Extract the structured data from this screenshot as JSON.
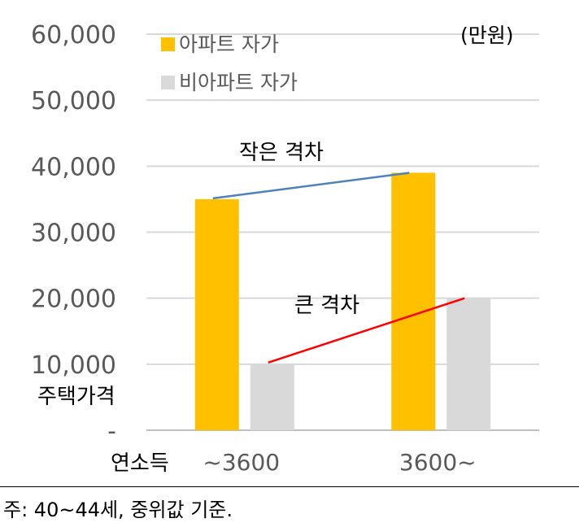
{
  "chart_data": {
    "type": "bar",
    "categories": [
      "~3600",
      "3600~"
    ],
    "series": [
      {
        "name": "아파트 자가",
        "values": [
          35000,
          39000
        ],
        "color": "#FFC000"
      },
      {
        "name": "비아파트 자가",
        "values": [
          10000,
          20000
        ],
        "color": "#D9D9D9"
      }
    ],
    "ylim": [
      0,
      60000
    ],
    "yticks": [
      "-",
      "10,000",
      "20,000",
      "30,000",
      "40,000",
      "50,000",
      "60,000"
    ],
    "ytick_values": [
      0,
      10000,
      20000,
      30000,
      40000,
      50000,
      60000
    ],
    "ylabel": "주택가격",
    "xlabel": "연소득",
    "unit": "(만원)",
    "grid": true,
    "legend": "top-left",
    "annotations": {
      "small_gap": {
        "text": "작은 격차",
        "color": "#4F81BD",
        "from": {
          "category": "~3600",
          "value": 35000
        },
        "to": {
          "category": "3600~",
          "value": 39000
        }
      },
      "big_gap": {
        "text": "큰 격차",
        "color": "#FF0000",
        "from": {
          "category": "~3600",
          "value": 10000
        },
        "to": {
          "category": "3600~",
          "value": 20000
        }
      }
    }
  },
  "colors": {
    "grid": "#D9D9D9",
    "axis": "#BFBFBF",
    "tick_text": "#595959"
  },
  "footnote": "주: 40~44세, 중위값 기준."
}
